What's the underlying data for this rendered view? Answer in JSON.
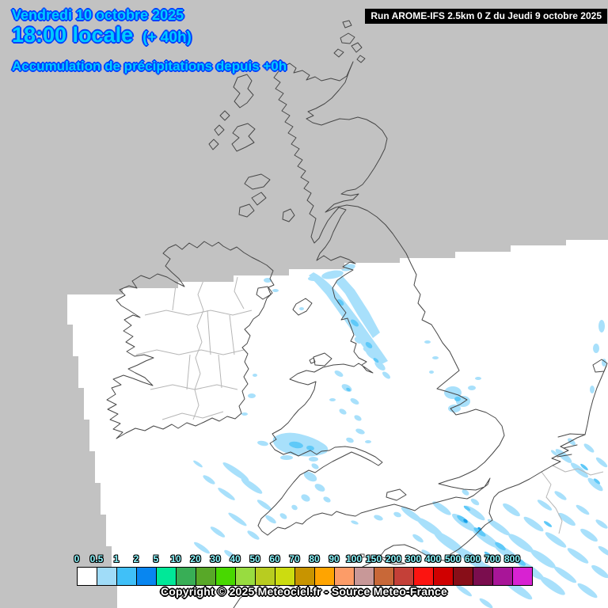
{
  "header": {
    "date": "Vendredi 10 octobre 2025",
    "time": "18:00 locale",
    "offset": "(+ 40h)",
    "subtitle": "Accumulation de précipitations depuis +0h"
  },
  "run_box": {
    "text": "Run AROME-IFS 2.5km 0 Z du Jeudi 9 octobre 2025"
  },
  "legend": {
    "ticks": [
      "0",
      "0.5",
      "1",
      "2",
      "5",
      "10",
      "20",
      "30",
      "40",
      "50",
      "60",
      "70",
      "80",
      "90",
      "100",
      "150",
      "200",
      "300",
      "400",
      "500",
      "600",
      "700",
      "800"
    ],
    "colors": [
      "#FFFFFF",
      "#A0DCF8",
      "#40C0F8",
      "#0886F0",
      "#00E898",
      "#38AE56",
      "#58A828",
      "#48D800",
      "#98DC40",
      "#B8CC20",
      "#CCDC10",
      "#C89400",
      "#FFA400",
      "#FC9C68",
      "#C89898",
      "#C86838",
      "#C44038",
      "#FC1410",
      "#D00000",
      "#880E18",
      "#7A0D4E",
      "#A81598",
      "#D822D2"
    ]
  },
  "footer": {
    "copyright": "Copyright © 2025 Meteociel.fr - Source Meteo-France"
  },
  "colors": {
    "background": "#c2c2c2",
    "domain": "#ffffff",
    "coast": "#474747",
    "region_border": "#b6b6b6",
    "precip_light": "#a8e0fb",
    "precip_mid": "#5fc9f8",
    "precip_dark": "#18a0e8",
    "title_fill": "#00ccff",
    "title_outline": "#0040ff",
    "tick_fill": "#8cf8ff",
    "tick_outline": "#000000",
    "run_bg": "#000000",
    "run_text": "#ffffff",
    "copyright_fill": "#ffffff",
    "copyright_outline": "#000000"
  }
}
